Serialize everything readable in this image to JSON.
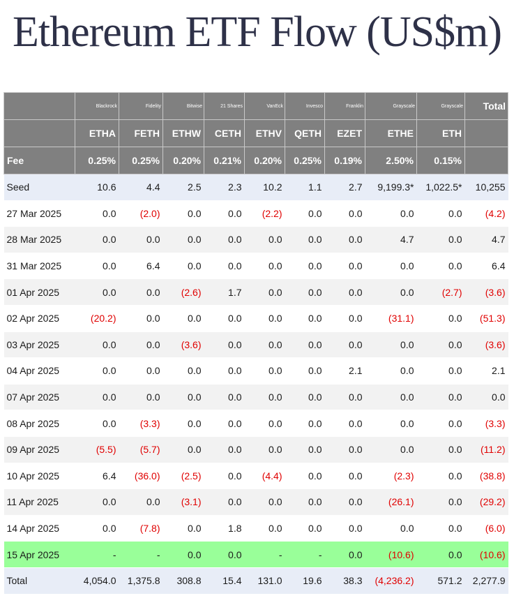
{
  "title": "Ethereum ETF Flow (US$m)",
  "columns": [
    {
      "issuer": "Blackrock",
      "ticker": "ETHA",
      "fee": "0.25%"
    },
    {
      "issuer": "Fidelity",
      "ticker": "FETH",
      "fee": "0.25%"
    },
    {
      "issuer": "Bitwise",
      "ticker": "ETHW",
      "fee": "0.20%"
    },
    {
      "issuer": "21 Shares",
      "ticker": "CETH",
      "fee": "0.21%"
    },
    {
      "issuer": "VanEck",
      "ticker": "ETHV",
      "fee": "0.20%"
    },
    {
      "issuer": "Invesco",
      "ticker": "QETH",
      "fee": "0.25%"
    },
    {
      "issuer": "Franklin",
      "ticker": "EZET",
      "fee": "0.19%"
    },
    {
      "issuer": "Grayscale",
      "ticker": "ETHE",
      "fee": "2.50%"
    },
    {
      "issuer": "Grayscale",
      "ticker": "ETH",
      "fee": "0.15%"
    }
  ],
  "total_header": "Total",
  "fee_label": "Fee",
  "rows": [
    {
      "label": "Seed",
      "style": "seed",
      "values": [
        "10.6",
        "4.4",
        "2.5",
        "2.3",
        "10.2",
        "1.1",
        "2.7",
        "9,199.3*",
        "1,022.5*",
        "10,255"
      ]
    },
    {
      "label": "27 Mar 2025",
      "style": "plain",
      "values": [
        "0.0",
        "(2.0)",
        "0.0",
        "0.0",
        "(2.2)",
        "0.0",
        "0.0",
        "0.0",
        "0.0",
        "(4.2)"
      ]
    },
    {
      "label": "28 Mar 2025",
      "style": "alt",
      "values": [
        "0.0",
        "0.0",
        "0.0",
        "0.0",
        "0.0",
        "0.0",
        "0.0",
        "4.7",
        "0.0",
        "4.7"
      ]
    },
    {
      "label": "31 Mar 2025",
      "style": "plain",
      "values": [
        "0.0",
        "6.4",
        "0.0",
        "0.0",
        "0.0",
        "0.0",
        "0.0",
        "0.0",
        "0.0",
        "6.4"
      ]
    },
    {
      "label": "01 Apr 2025",
      "style": "alt",
      "values": [
        "0.0",
        "0.0",
        "(2.6)",
        "1.7",
        "0.0",
        "0.0",
        "0.0",
        "0.0",
        "(2.7)",
        "(3.6)"
      ]
    },
    {
      "label": "02 Apr 2025",
      "style": "plain",
      "values": [
        "(20.2)",
        "0.0",
        "0.0",
        "0.0",
        "0.0",
        "0.0",
        "0.0",
        "(31.1)",
        "0.0",
        "(51.3)"
      ]
    },
    {
      "label": "03 Apr 2025",
      "style": "alt",
      "values": [
        "0.0",
        "0.0",
        "(3.6)",
        "0.0",
        "0.0",
        "0.0",
        "0.0",
        "0.0",
        "0.0",
        "(3.6)"
      ]
    },
    {
      "label": "04 Apr 2025",
      "style": "plain",
      "values": [
        "0.0",
        "0.0",
        "0.0",
        "0.0",
        "0.0",
        "0.0",
        "2.1",
        "0.0",
        "0.0",
        "2.1"
      ]
    },
    {
      "label": "07 Apr 2025",
      "style": "alt",
      "values": [
        "0.0",
        "0.0",
        "0.0",
        "0.0",
        "0.0",
        "0.0",
        "0.0",
        "0.0",
        "0.0",
        "0.0"
      ]
    },
    {
      "label": "08 Apr 2025",
      "style": "plain",
      "values": [
        "0.0",
        "(3.3)",
        "0.0",
        "0.0",
        "0.0",
        "0.0",
        "0.0",
        "0.0",
        "0.0",
        "(3.3)"
      ]
    },
    {
      "label": "09 Apr 2025",
      "style": "alt",
      "values": [
        "(5.5)",
        "(5.7)",
        "0.0",
        "0.0",
        "0.0",
        "0.0",
        "0.0",
        "0.0",
        "0.0",
        "(11.2)"
      ]
    },
    {
      "label": "10 Apr 2025",
      "style": "plain",
      "values": [
        "6.4",
        "(36.0)",
        "(2.5)",
        "0.0",
        "(4.4)",
        "0.0",
        "0.0",
        "(2.3)",
        "0.0",
        "(38.8)"
      ]
    },
    {
      "label": "11 Apr 2025",
      "style": "alt",
      "values": [
        "0.0",
        "0.0",
        "(3.1)",
        "0.0",
        "0.0",
        "0.0",
        "0.0",
        "(26.1)",
        "0.0",
        "(29.2)"
      ]
    },
    {
      "label": "14 Apr 2025",
      "style": "plain",
      "values": [
        "0.0",
        "(7.8)",
        "0.0",
        "1.8",
        "0.0",
        "0.0",
        "0.0",
        "0.0",
        "0.0",
        "(6.0)"
      ]
    },
    {
      "label": "15 Apr 2025",
      "style": "highlight",
      "values": [
        "-",
        "-",
        "0.0",
        "0.0",
        "-",
        "-",
        "0.0",
        "(10.6)",
        "0.0",
        "(10.6)"
      ]
    },
    {
      "label": "Total",
      "style": "total",
      "values": [
        "4,054.0",
        "1,375.8",
        "308.8",
        "15.4",
        "131.0",
        "19.6",
        "38.3",
        "(4,236.2)",
        "571.2",
        "2,277.9"
      ]
    }
  ],
  "colors": {
    "header_bg": "#808080",
    "negative": "#e00000",
    "highlight_row": "#99ff99",
    "seed_total_bg": "#e8edf7",
    "alt_row_bg": "#f2f2f2",
    "title": "#2e3148"
  }
}
